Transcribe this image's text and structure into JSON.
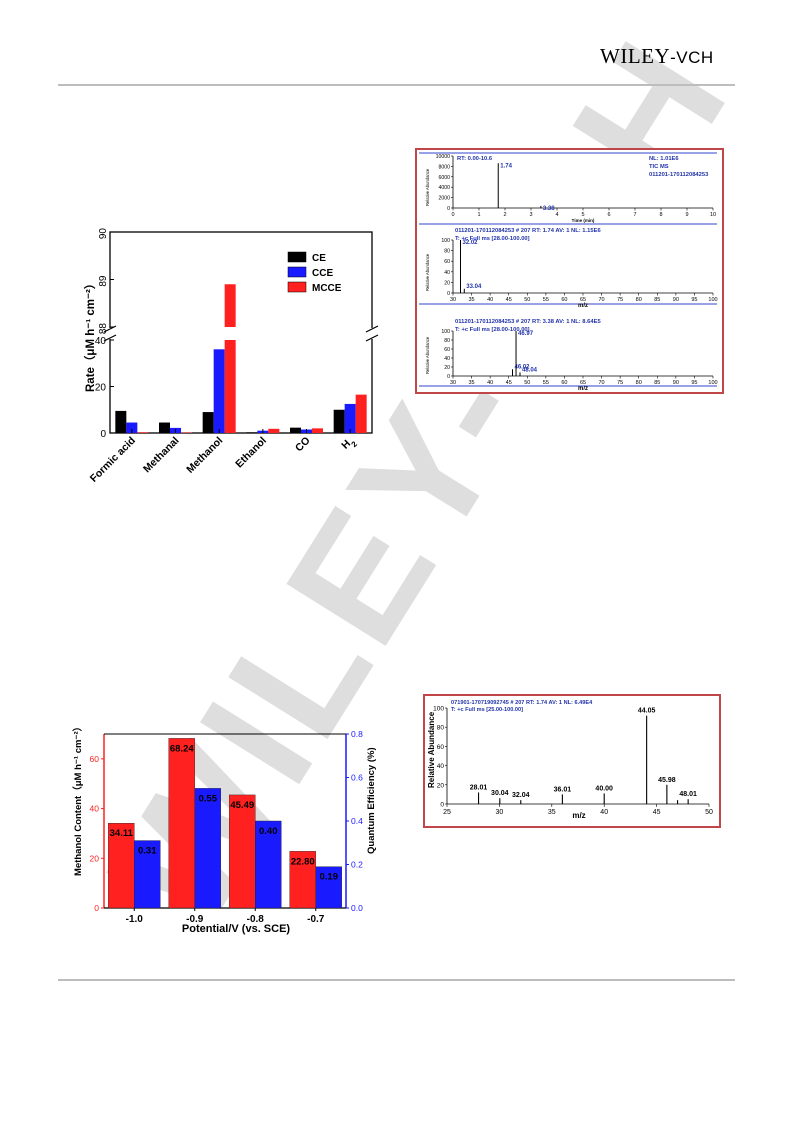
{
  "header": {
    "logo_main": "WILEY",
    "logo_suffix": "-VCH"
  },
  "watermark": {
    "text": "WILEY-VCH",
    "color": "#dcdcdc"
  },
  "colors": {
    "black": "#000000",
    "blue": "#1a1aff",
    "red": "#ff2020",
    "ms_blue": "#2233aa",
    "frame": "#c1464a"
  },
  "chart_data": [
    {
      "type": "bar",
      "categories": [
        "Formic acid",
        "Methanal",
        "Methanol",
        "Ethanol",
        "CO",
        "H2"
      ],
      "category_labels": [
        "Formic acid",
        "Methanal",
        "Methanol",
        "Ethanol",
        "CO",
        "H"
      ],
      "category_subscripts": [
        "",
        "",
        "",
        "",
        "",
        "2"
      ],
      "series": [
        {
          "name": "CE",
          "color": "#000000",
          "values": [
            9.5,
            4.5,
            9,
            0.3,
            2.3,
            10
          ]
        },
        {
          "name": "CCE",
          "color": "#1a1aff",
          "values": [
            4.5,
            2.2,
            36,
            1,
            1.5,
            12.5
          ]
        },
        {
          "name": "MCCE",
          "color": "#ff2020",
          "values": [
            0.3,
            0.2,
            88.9,
            1.8,
            2,
            16.5
          ]
        }
      ],
      "ylabel": "Rate（μM h⁻¹ cm⁻²）",
      "y_axis_break": {
        "lower": [
          0,
          40
        ],
        "upper": [
          88,
          90
        ]
      },
      "lower_ticks": [
        0,
        20,
        40
      ],
      "upper_ticks": [
        88,
        89,
        90
      ],
      "legend_position": "top-right"
    },
    {
      "type": "line",
      "title": "",
      "panels": [
        {
          "header": [
            "RT: 0.00-10.6"
          ],
          "info": [
            "NL: 1.01E6",
            "TIC MS",
            "011201-170112084253"
          ],
          "xlabel": "Time (min)",
          "ylabel": "Relative Abundance",
          "xlim": [
            0,
            10
          ],
          "x_ticks": [
            0,
            1,
            2,
            3,
            4,
            5,
            6,
            7,
            8,
            9,
            10
          ],
          "y_ticks": [
            0,
            2000,
            4000,
            6000,
            8000,
            10000
          ],
          "ylim": [
            0,
            10000
          ],
          "peaks": [
            {
              "x": 1.74,
              "y": 8600,
              "label": "1.74"
            },
            {
              "x": 3.38,
              "y": 400,
              "label": "3.38"
            }
          ]
        },
        {
          "header": [
            "011201-170112084253 # 207 RT: 1.74 AV: 1 NL: 1.15E6",
            "T: +c Full ms [28.00-100.00]"
          ],
          "xlabel": "m/z",
          "ylabel": "Relative Abundance",
          "xlim": [
            30,
            100
          ],
          "x_ticks": [
            30,
            35,
            40,
            45,
            50,
            55,
            60,
            65,
            70,
            75,
            80,
            85,
            90,
            95,
            100
          ],
          "y_ticks": [
            0,
            20,
            40,
            60,
            80,
            100
          ],
          "ylim": [
            0,
            100
          ],
          "peaks": [
            {
              "x": 32.02,
              "y": 100,
              "label": "32.02"
            },
            {
              "x": 33.04,
              "y": 8,
              "label": "33.04"
            }
          ]
        },
        {
          "header": [
            "011201-170112084253 # 207 RT: 3.38 AV: 1 NL: 8.64E5",
            "T: +c Full ms [28.00-100.00]"
          ],
          "xlabel": "m/z",
          "ylabel": "Relative Abundance",
          "xlim": [
            30,
            100
          ],
          "x_ticks": [
            30,
            35,
            40,
            45,
            50,
            55,
            60,
            65,
            70,
            75,
            80,
            85,
            90,
            95,
            100
          ],
          "y_ticks": [
            0,
            20,
            40,
            60,
            80,
            100
          ],
          "ylim": [
            0,
            100
          ],
          "peaks": [
            {
              "x": 46.97,
              "y": 100,
              "label": "46.97"
            },
            {
              "x": 46.02,
              "y": 15,
              "label": "46.02"
            },
            {
              "x": 48.04,
              "y": 8,
              "label": "48.04"
            }
          ]
        }
      ]
    },
    {
      "type": "bar",
      "categories": [
        "-1.0",
        "-0.9",
        "-0.8",
        "-0.7"
      ],
      "series": [
        {
          "name": "",
          "axis": "left",
          "color": "#ff2020",
          "values": [
            34.11,
            68.24,
            45.49,
            22.8
          ],
          "labels": [
            "34.11",
            "68.24",
            "45.49",
            "22.80"
          ]
        },
        {
          "name": "",
          "axis": "right",
          "color": "#1a1aff",
          "values": [
            0.31,
            0.55,
            0.4,
            0.19
          ],
          "labels": [
            "0.31",
            "0.55",
            "0.40",
            "0.19"
          ]
        }
      ],
      "xlabel": "Potential/V (vs. SCE)",
      "ylabel": "Methanol Content（μM h⁻¹ cm⁻²）",
      "ylabel_right": "Quantum Efficiency (%)",
      "ylim": [
        0,
        70
      ],
      "ylim_right": [
        0,
        0.8
      ],
      "y_ticks": [
        0,
        20,
        40,
        60
      ],
      "y_ticks_right": [
        0.0,
        0.2,
        0.4,
        0.6,
        0.8
      ]
    },
    {
      "type": "bar",
      "header": [
        "071901-170719092745 # 207 RT: 1.74 AV: 1 NL: 6.49E4",
        "T: +c Full ms [25.00-100.00]"
      ],
      "xlabel": "m/z",
      "ylabel": "Relative Abundance",
      "xlim": [
        25,
        50
      ],
      "ylim": [
        0,
        100
      ],
      "x_ticks": [
        25,
        30,
        35,
        40,
        45,
        50
      ],
      "y_ticks": [
        0,
        20,
        40,
        60,
        80,
        100
      ],
      "peaks": [
        {
          "x": 28.01,
          "y": 12,
          "label": "28.01"
        },
        {
          "x": 30.04,
          "y": 6,
          "label": "30.04"
        },
        {
          "x": 32.04,
          "y": 4,
          "label": "32.04"
        },
        {
          "x": 36.01,
          "y": 10,
          "label": "36.01"
        },
        {
          "x": 40.0,
          "y": 11,
          "label": "40.00"
        },
        {
          "x": 44.05,
          "y": 92,
          "label": "44.05"
        },
        {
          "x": 45.98,
          "y": 20,
          "label": "45.98"
        },
        {
          "x": 47.0,
          "y": 4,
          "label": ""
        },
        {
          "x": 48.01,
          "y": 5,
          "label": "48.01"
        }
      ]
    }
  ]
}
